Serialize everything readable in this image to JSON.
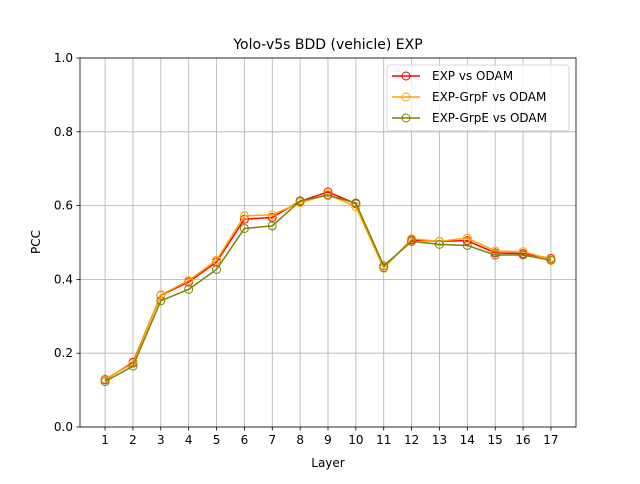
{
  "chart_data": {
    "type": "line",
    "title": "Yolo-v5s BDD (vehicle) EXP",
    "xlabel": "Layer",
    "ylabel": "PCC",
    "x": [
      1,
      2,
      3,
      4,
      5,
      6,
      7,
      8,
      9,
      10,
      11,
      12,
      13,
      14,
      15,
      16,
      17
    ],
    "x_tick_labels": [
      "1",
      "2",
      "3",
      "4",
      "5",
      "6",
      "7",
      "8",
      "9",
      "10",
      "11",
      "12",
      "13",
      "14",
      "15",
      "16",
      "17"
    ],
    "xlim": [
      0.1,
      17.9
    ],
    "ylim": [
      0.0,
      1.0
    ],
    "y_ticks": [
      0.0,
      0.2,
      0.4,
      0.6,
      0.8,
      1.0
    ],
    "y_tick_labels": [
      "0.0",
      "0.2",
      "0.4",
      "0.6",
      "0.8",
      "1.0"
    ],
    "grid": true,
    "legend_position": "top-right",
    "marker": "hollow-circle",
    "series": [
      {
        "name": "EXP vs ODAM",
        "color": "#ff0000",
        "values": [
          0.128,
          0.175,
          0.357,
          0.393,
          0.447,
          0.563,
          0.568,
          0.612,
          0.637,
          0.605,
          0.432,
          0.507,
          0.503,
          0.505,
          0.472,
          0.47,
          0.457
        ]
      },
      {
        "name": "EXP-GrpF vs ODAM",
        "color": "#ffa500",
        "values": [
          0.13,
          0.172,
          0.358,
          0.397,
          0.452,
          0.572,
          0.575,
          0.608,
          0.63,
          0.597,
          0.43,
          0.51,
          0.503,
          0.512,
          0.477,
          0.475,
          0.455
        ]
      },
      {
        "name": "EXP-GrpE vs ODAM",
        "color": "#808000",
        "values": [
          0.123,
          0.165,
          0.342,
          0.373,
          0.427,
          0.538,
          0.545,
          0.613,
          0.628,
          0.607,
          0.437,
          0.503,
          0.495,
          0.492,
          0.466,
          0.466,
          0.452
        ]
      }
    ]
  }
}
